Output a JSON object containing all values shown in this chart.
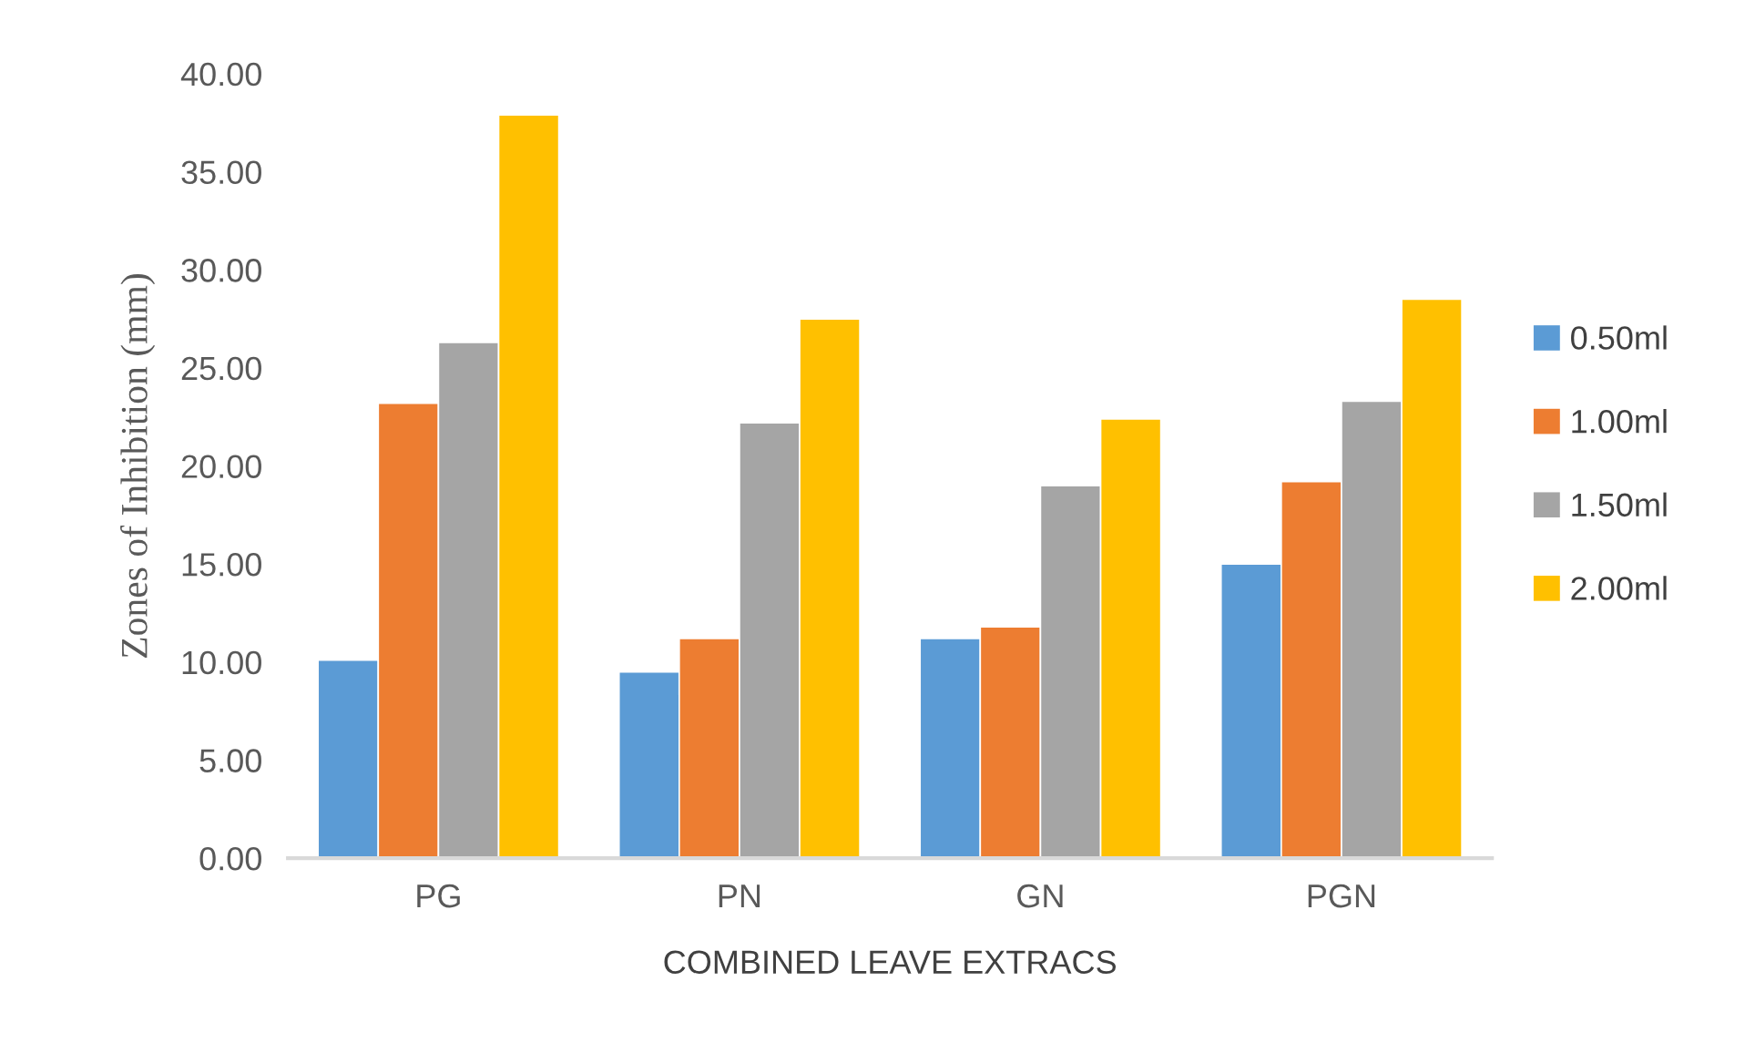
{
  "chart_data": {
    "type": "bar",
    "xlabel": "COMBINED LEAVE EXTRACS",
    "ylabel": "Zones of Inhibition (mm)",
    "categories": [
      "PG",
      "PN",
      "GN",
      "PGN"
    ],
    "series": [
      {
        "name": "0.50ml",
        "color": "#5b9bd5",
        "values": [
          10.1,
          9.5,
          11.2,
          15.0
        ]
      },
      {
        "name": "1.00ml",
        "color": "#ed7d31",
        "values": [
          23.2,
          11.2,
          11.8,
          19.2
        ]
      },
      {
        "name": "1.50ml",
        "color": "#a5a5a5",
        "values": [
          26.3,
          22.2,
          19.0,
          23.3
        ]
      },
      {
        "name": "2.00ml",
        "color": "#ffc000",
        "values": [
          37.9,
          27.5,
          22.4,
          28.5
        ]
      }
    ],
    "ylim": [
      0,
      40
    ],
    "yticks": [
      {
        "value": 0,
        "label": "0.00"
      },
      {
        "value": 5,
        "label": "5.00"
      },
      {
        "value": 10,
        "label": "10.00"
      },
      {
        "value": 15,
        "label": "15.00"
      },
      {
        "value": 20,
        "label": "20.00"
      },
      {
        "value": 25,
        "label": "25.00"
      },
      {
        "value": 30,
        "label": "30.00"
      },
      {
        "value": 35,
        "label": "35.00"
      },
      {
        "value": 40,
        "label": "40.00"
      }
    ],
    "grid": false,
    "legend": "right"
  }
}
